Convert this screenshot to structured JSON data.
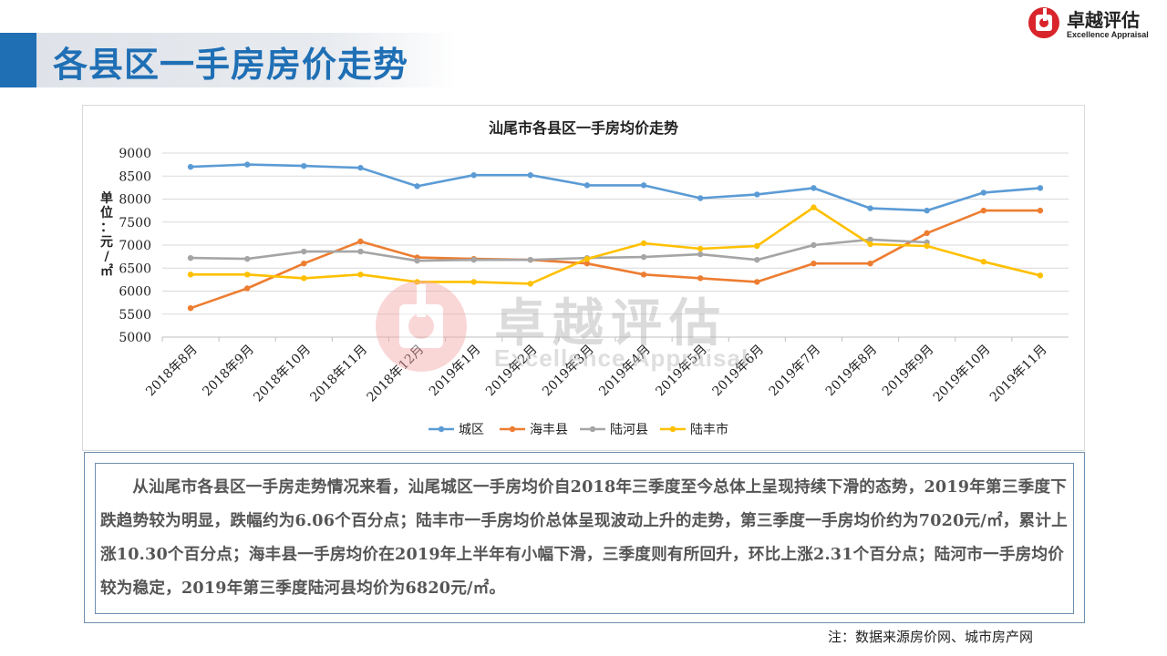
{
  "page": {
    "title": "各县区一手房房价走势",
    "logo_cn": "卓越评估",
    "logo_en": "Excellence Appraisal",
    "watermark_cn": "卓越评估",
    "watermark_en": "Excellence Appraisal",
    "description": "从汕尾市各县区一手房走势情况来看，汕尾城区一手房均价自2018年三季度至今总体上呈现持续下滑的态势，2019年第三季度下跌趋势较为明显，跌幅约为6.06个百分点；陆丰市一手房均价总体呈现波动上升的走势，第三季度一手房均价约为7020元/㎡，累计上涨10.30个百分点；海丰县一手房均价在2019年上半年有小幅下滑，三季度则有所回升，环比上涨2.31个百分点；陆河市一手房均价较为稳定，2019年第三季度陆河县均价为6820元/㎡。",
    "note": "注：数据来源房价网、城市房产网"
  },
  "colors": {
    "accent": "#1f6fb5",
    "logo_red": "#d9242b"
  },
  "chart_data": {
    "type": "line",
    "title": "汕尾市各县区一手房均价走势",
    "ylabel": "单位：元/㎡",
    "xlabel": "",
    "ylim": [
      5000,
      9000
    ],
    "yticks": [
      5000,
      5500,
      6000,
      6500,
      7000,
      7500,
      8000,
      8500,
      9000
    ],
    "grid": true,
    "legend_position": "bottom",
    "categories": [
      "2018年8月",
      "2018年9月",
      "2018年10月",
      "2018年11月",
      "2018年12月",
      "2019年1月",
      "2019年2月",
      "2019年3月",
      "2019年4月",
      "2019年5月",
      "2019年6月",
      "2019年7月",
      "2019年8月",
      "2019年9月",
      "2019年10月",
      "2019年11月"
    ],
    "series": [
      {
        "name": "城区",
        "color": "#5b9bd5",
        "values": [
          8700,
          8750,
          8720,
          8680,
          8280,
          8520,
          8520,
          8300,
          8300,
          8020,
          8100,
          8240,
          7800,
          7750,
          8140,
          8240
        ]
      },
      {
        "name": "海丰县",
        "color": "#ed7d31",
        "values": [
          5630,
          6060,
          6600,
          7080,
          6730,
          6700,
          6680,
          6600,
          6360,
          6280,
          6200,
          6600,
          6600,
          7260,
          7750,
          7750
        ]
      },
      {
        "name": "陆河县",
        "color": "#a5a5a5",
        "values": [
          6720,
          6700,
          6860,
          6860,
          6660,
          6680,
          6680,
          6720,
          6740,
          6800,
          6680,
          7000,
          7120,
          7060,
          null,
          null
        ]
      },
      {
        "name": "陆丰市",
        "color": "#ffc000",
        "values": [
          6360,
          6360,
          6280,
          6360,
          6200,
          6200,
          6160,
          6700,
          7040,
          6920,
          6980,
          7820,
          7020,
          6980,
          6640,
          6340
        ]
      }
    ]
  }
}
